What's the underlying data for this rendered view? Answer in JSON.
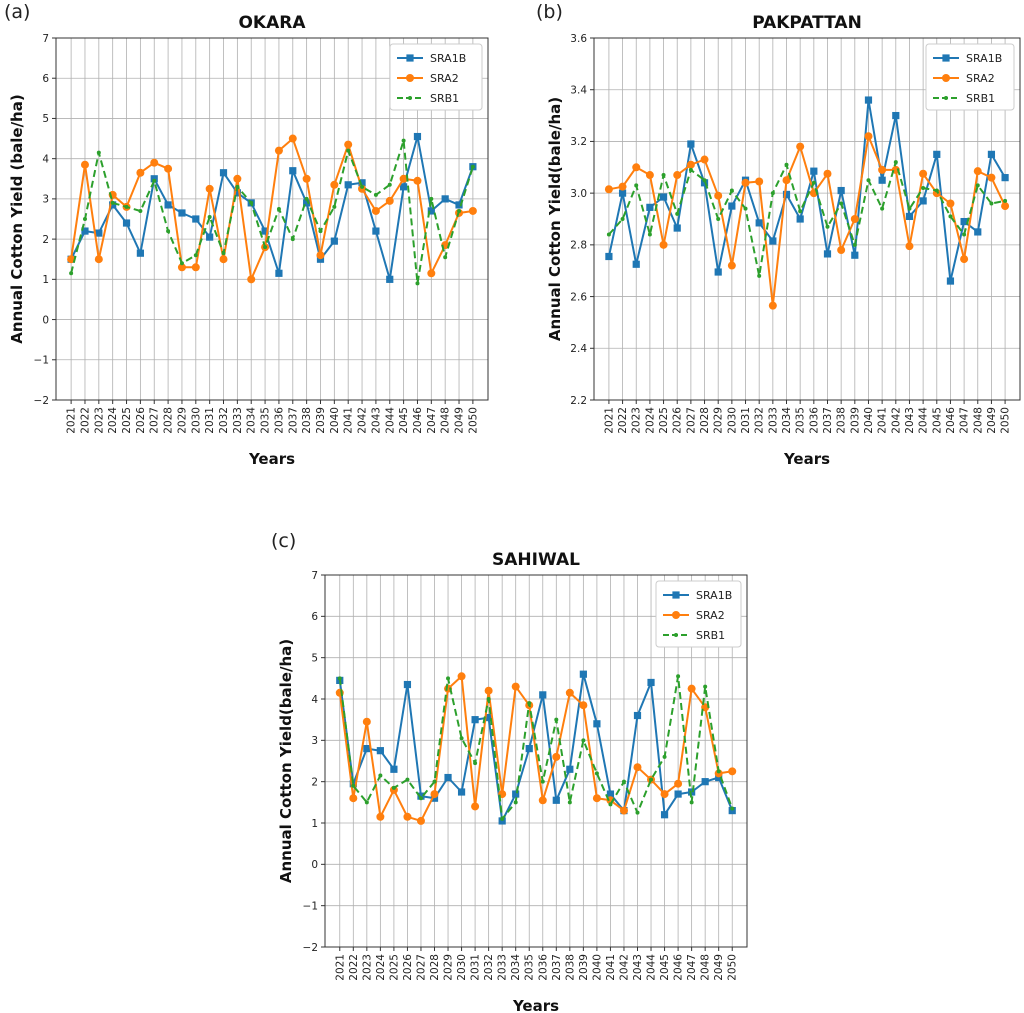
{
  "colors": {
    "SRA1B": "#1f77b4",
    "SRA2": "#ff7f0e",
    "SRB1": "#2ca02c"
  },
  "chart_data": [
    {
      "panel_label": "(a)",
      "type": "line",
      "title": "OKARA",
      "xlabel": "Years",
      "ylabel": "Annual Cotton Yield (bale/ha)",
      "ylim": [
        -2,
        7
      ],
      "yticks": [
        "−2",
        "−1",
        "0",
        "1",
        "2",
        "3",
        "4",
        "5",
        "6",
        "7"
      ],
      "grid": true,
      "legend_position": "top-right",
      "x": [
        "2021",
        "2022",
        "2023",
        "2024",
        "2025",
        "2026",
        "2027",
        "2028",
        "2029",
        "2030",
        "2031",
        "2032",
        "2033",
        "2034",
        "2035",
        "2036",
        "2037",
        "2038",
        "2039",
        "2040",
        "2041",
        "2042",
        "2043",
        "2044",
        "2045",
        "2046",
        "2047",
        "2048",
        "2049",
        "2050"
      ],
      "series": [
        {
          "name": "SRA1B",
          "marker": "square",
          "style": "solid",
          "values": [
            1.5,
            2.2,
            2.15,
            2.85,
            2.4,
            1.65,
            3.5,
            2.85,
            2.65,
            2.5,
            2.05,
            3.65,
            3.15,
            2.9,
            2.2,
            1.15,
            3.7,
            2.9,
            1.5,
            1.95,
            3.35,
            3.4,
            2.2,
            1.0,
            3.3,
            4.55,
            2.7,
            3.0,
            2.85,
            3.8
          ]
        },
        {
          "name": "SRA2",
          "marker": "circle",
          "style": "solid",
          "values": [
            1.5,
            3.85,
            1.5,
            3.1,
            2.8,
            3.65,
            3.9,
            3.75,
            1.3,
            1.3,
            3.25,
            1.5,
            3.5,
            1.0,
            1.8,
            4.2,
            4.5,
            3.5,
            1.6,
            3.35,
            4.35,
            3.25,
            2.7,
            2.95,
            3.5,
            3.45,
            1.15,
            1.85,
            2.65,
            2.7
          ]
        },
        {
          "name": "SRB1",
          "marker": "dot",
          "style": "dashed",
          "values": [
            1.15,
            2.5,
            4.15,
            2.9,
            2.8,
            2.7,
            3.45,
            2.2,
            1.4,
            1.6,
            2.55,
            1.65,
            3.3,
            2.9,
            1.8,
            2.75,
            2.0,
            3.0,
            2.2,
            2.8,
            4.2,
            3.3,
            3.1,
            3.35,
            4.45,
            0.9,
            3.0,
            1.55,
            2.7,
            3.8
          ]
        }
      ]
    },
    {
      "panel_label": "(b)",
      "type": "line",
      "title": "PAKPATTAN",
      "xlabel": "Years",
      "ylabel": "Annual Cotton Yield(bale/ha)",
      "ylim": [
        2.2,
        3.6
      ],
      "yticks": [
        "2.2",
        "2.4",
        "2.6",
        "2.8",
        "3.0",
        "3.2",
        "3.4",
        "3.6"
      ],
      "grid": true,
      "legend_position": "top-right",
      "x": [
        "2021",
        "2022",
        "2023",
        "2024",
        "2025",
        "2026",
        "2027",
        "2028",
        "2029",
        "2030",
        "2031",
        "2032",
        "2033",
        "2034",
        "2035",
        "2036",
        "2037",
        "2038",
        "2039",
        "2040",
        "2041",
        "2042",
        "2043",
        "2044",
        "2045",
        "2046",
        "2047",
        "2048",
        "2049",
        "2050"
      ],
      "series": [
        {
          "name": "SRA1B",
          "marker": "square",
          "style": "solid",
          "values": [
            2.755,
            3.0,
            2.725,
            2.945,
            2.985,
            2.865,
            3.19,
            3.04,
            2.695,
            2.95,
            3.05,
            2.885,
            2.815,
            2.995,
            2.9,
            3.085,
            2.765,
            3.01,
            2.76,
            3.36,
            3.05,
            3.3,
            2.91,
            2.97,
            3.15,
            2.66,
            2.89,
            2.85,
            3.15,
            3.06
          ]
        },
        {
          "name": "SRA2",
          "marker": "circle",
          "style": "solid",
          "values": [
            3.015,
            3.025,
            3.1,
            3.07,
            2.8,
            3.07,
            3.11,
            3.13,
            2.99,
            2.72,
            3.04,
            3.045,
            2.565,
            3.05,
            3.18,
            3.0,
            3.075,
            2.78,
            2.9,
            3.22,
            3.09,
            3.09,
            2.795,
            3.075,
            3.0,
            2.96,
            2.745,
            3.085,
            3.06,
            2.95
          ]
        },
        {
          "name": "SRB1",
          "marker": "dot",
          "style": "dashed",
          "values": [
            2.84,
            2.9,
            3.03,
            2.84,
            3.07,
            2.92,
            3.09,
            3.05,
            2.9,
            3.01,
            2.94,
            2.68,
            3.0,
            3.11,
            2.93,
            3.04,
            2.87,
            2.96,
            2.8,
            3.05,
            2.94,
            3.12,
            2.94,
            3.02,
            3.01,
            2.91,
            2.84,
            3.03,
            2.96,
            2.97
          ]
        }
      ]
    },
    {
      "panel_label": "(c)",
      "type": "line",
      "title": "SAHIWAL",
      "xlabel": "Years",
      "ylabel": "Annual Cotton Yield(bale/ha)",
      "ylim": [
        -2,
        7
      ],
      "yticks": [
        "−2",
        "−1",
        "0",
        "1",
        "2",
        "3",
        "4",
        "5",
        "6",
        "7"
      ],
      "grid": true,
      "legend_position": "top-right",
      "x": [
        "2021",
        "2022",
        "2023",
        "2024",
        "2025",
        "2026",
        "2027",
        "2028",
        "2029",
        "2030",
        "2031",
        "2032",
        "2033",
        "2034",
        "2035",
        "2036",
        "2037",
        "2038",
        "2039",
        "2040",
        "2041",
        "2042",
        "2043",
        "2044",
        "2045",
        "2046",
        "2047",
        "2048",
        "2049",
        "2050"
      ],
      "series": [
        {
          "name": "SRA1B",
          "marker": "square",
          "style": "solid",
          "values": [
            4.45,
            1.95,
            2.8,
            2.75,
            2.3,
            4.35,
            1.65,
            1.6,
            2.1,
            1.75,
            3.5,
            3.55,
            1.05,
            1.7,
            2.8,
            4.1,
            1.55,
            2.3,
            4.6,
            3.4,
            1.7,
            1.3,
            3.6,
            4.4,
            1.2,
            1.7,
            1.75,
            2.0,
            2.1,
            1.3
          ]
        },
        {
          "name": "SRA2",
          "marker": "circle",
          "style": "solid",
          "values": [
            4.15,
            1.6,
            3.45,
            1.15,
            1.8,
            1.15,
            1.05,
            1.7,
            4.25,
            4.55,
            1.4,
            4.2,
            1.7,
            4.3,
            3.85,
            1.55,
            2.6,
            4.15,
            3.85,
            1.6,
            1.55,
            1.3,
            2.35,
            2.05,
            1.7,
            1.95,
            4.25,
            3.8,
            2.2,
            2.25
          ]
        },
        {
          "name": "SRB1",
          "marker": "dot",
          "style": "dashed",
          "values": [
            4.5,
            1.9,
            1.5,
            2.15,
            1.85,
            2.05,
            1.6,
            2.0,
            4.5,
            3.05,
            2.45,
            4.0,
            1.1,
            1.5,
            3.9,
            2.0,
            3.5,
            1.5,
            3.0,
            2.2,
            1.45,
            2.0,
            1.25,
            2.05,
            2.6,
            4.55,
            1.5,
            4.3,
            2.25,
            1.35
          ]
        }
      ]
    }
  ]
}
